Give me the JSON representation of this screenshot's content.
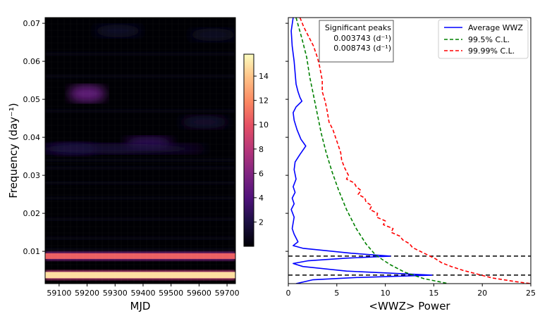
{
  "chart_data": [
    {
      "type": "heatmap",
      "xlabel": "MJD",
      "ylabel": "Frequency (day⁻¹)",
      "xlim": [
        59050,
        59730
      ],
      "ylim": [
        0.0015,
        0.0715
      ],
      "xticks": [
        "59100",
        "59200",
        "59300",
        "59400",
        "59500",
        "59600",
        "59700"
      ],
      "yticks": [
        "0.01",
        "0.02",
        "0.03",
        "0.04",
        "0.05",
        "0.06",
        "0.07"
      ],
      "colorbar": {
        "min": 0,
        "max": 15.8,
        "ticks": [
          "2",
          "4",
          "6",
          "8",
          "10",
          "12",
          "14"
        ],
        "colormap": "magma"
      },
      "features": [
        {
          "kind": "band",
          "freq": 0.003743,
          "value": 14.8
        },
        {
          "kind": "band",
          "freq": 0.008743,
          "value": 10.5
        },
        {
          "kind": "blob",
          "time": 59200,
          "freq": 0.0515,
          "value": 4.8
        },
        {
          "kind": "blob",
          "time": 59420,
          "freq": 0.0385,
          "value": 2.8
        },
        {
          "kind": "blob",
          "time": 59150,
          "freq": 0.037,
          "value": 1.8
        },
        {
          "kind": "blob",
          "time": 59620,
          "freq": 0.044,
          "value": 1.5
        },
        {
          "kind": "blob",
          "time": 59310,
          "freq": 0.068,
          "value": 1.2
        },
        {
          "kind": "blob",
          "time": 59650,
          "freq": 0.067,
          "value": 1.1
        }
      ]
    },
    {
      "type": "line",
      "xlabel": "<WWZ> Power",
      "xlim": [
        0,
        25
      ],
      "ylim": [
        0.0015,
        0.0715
      ],
      "xticks": [
        "0",
        "5",
        "10",
        "15",
        "20",
        "25"
      ],
      "significant_peaks": {
        "title": "Significant peaks",
        "values": [
          "0.003743 (d⁻¹)",
          "0.008743 (d⁻¹)"
        ],
        "freqs": [
          0.003743,
          0.008743
        ]
      },
      "legend": {
        "position": "top-right"
      },
      "series": [
        {
          "name": "Average WWZ",
          "color": "#0000ff",
          "style": "solid",
          "points": [
            [
              0.5,
              0.0715
            ],
            [
              0.3,
              0.068
            ],
            [
              0.4,
              0.064
            ],
            [
              0.6,
              0.06
            ],
            [
              0.7,
              0.057
            ],
            [
              0.8,
              0.054
            ],
            [
              1.0,
              0.052
            ],
            [
              1.2,
              0.0505
            ],
            [
              1.4,
              0.0495
            ],
            [
              0.8,
              0.048
            ],
            [
              0.5,
              0.0465
            ],
            [
              0.6,
              0.0445
            ],
            [
              0.9,
              0.042
            ],
            [
              1.3,
              0.0395
            ],
            [
              1.8,
              0.0377
            ],
            [
              1.2,
              0.0355
            ],
            [
              0.7,
              0.0335
            ],
            [
              0.6,
              0.0315
            ],
            [
              0.8,
              0.029
            ],
            [
              0.5,
              0.027
            ],
            [
              0.7,
              0.0255
            ],
            [
              0.4,
              0.024
            ],
            [
              0.6,
              0.0225
            ],
            [
              0.3,
              0.021
            ],
            [
              0.6,
              0.019
            ],
            [
              0.5,
              0.0175
            ],
            [
              0.4,
              0.016
            ],
            [
              0.6,
              0.0145
            ],
            [
              1.0,
              0.0125
            ],
            [
              0.5,
              0.0115
            ],
            [
              1.5,
              0.0108
            ],
            [
              6.5,
              0.0095
            ],
            [
              10.5,
              0.008743
            ],
            [
              6.0,
              0.0082
            ],
            [
              2.0,
              0.0075
            ],
            [
              0.5,
              0.0068
            ],
            [
              1.5,
              0.006
            ],
            [
              6.0,
              0.0048
            ],
            [
              14.8,
              0.003743
            ],
            [
              7.0,
              0.0031
            ],
            [
              2.5,
              0.0025
            ],
            [
              0.8,
              0.0015
            ]
          ]
        },
        {
          "name": "99.5% C.L.",
          "color": "#008000",
          "style": "dashed",
          "points": [
            [
              0.8,
              0.0715
            ],
            [
              1.4,
              0.066
            ],
            [
              1.9,
              0.061
            ],
            [
              2.2,
              0.056
            ],
            [
              2.6,
              0.051
            ],
            [
              3.0,
              0.046
            ],
            [
              3.4,
              0.041
            ],
            [
              3.9,
              0.036
            ],
            [
              4.5,
              0.031
            ],
            [
              5.2,
              0.026
            ],
            [
              6.0,
              0.021
            ],
            [
              7.0,
              0.016
            ],
            [
              8.0,
              0.012
            ],
            [
              9.0,
              0.009
            ],
            [
              10.5,
              0.0065
            ],
            [
              12.0,
              0.0045
            ],
            [
              14.0,
              0.0028
            ],
            [
              16.5,
              0.0015
            ]
          ]
        },
        {
          "name": "99.99% C.L.",
          "color": "#ff0000",
          "style": "dashed",
          "points": [
            [
              1.2,
              0.0715
            ],
            [
              1.6,
              0.069
            ],
            [
              2.2,
              0.066
            ],
            [
              2.6,
              0.064
            ],
            [
              3.0,
              0.061
            ],
            [
              3.2,
              0.059
            ],
            [
              3.5,
              0.055
            ],
            [
              3.5,
              0.052
            ],
            [
              3.8,
              0.0495
            ],
            [
              4.0,
              0.047
            ],
            [
              4.2,
              0.044
            ],
            [
              4.6,
              0.042
            ],
            [
              5.0,
              0.039
            ],
            [
              5.4,
              0.036
            ],
            [
              5.5,
              0.034
            ],
            [
              5.8,
              0.032
            ],
            [
              6.2,
              0.03
            ],
            [
              6.0,
              0.029
            ],
            [
              6.8,
              0.028
            ],
            [
              7.0,
              0.027
            ],
            [
              7.5,
              0.026
            ],
            [
              7.2,
              0.025
            ],
            [
              7.9,
              0.024
            ],
            [
              8.0,
              0.023
            ],
            [
              8.6,
              0.022
            ],
            [
              8.4,
              0.021
            ],
            [
              9.2,
              0.02
            ],
            [
              9.1,
              0.019
            ],
            [
              10.0,
              0.018
            ],
            [
              9.8,
              0.017
            ],
            [
              10.8,
              0.016
            ],
            [
              10.6,
              0.015
            ],
            [
              11.5,
              0.014
            ],
            [
              11.8,
              0.013
            ],
            [
              12.5,
              0.012
            ],
            [
              12.8,
              0.011
            ],
            [
              13.6,
              0.01
            ],
            [
              14.4,
              0.009
            ],
            [
              15.2,
              0.008
            ],
            [
              15.8,
              0.007
            ],
            [
              16.8,
              0.006
            ],
            [
              18.0,
              0.005
            ],
            [
              19.5,
              0.004
            ],
            [
              21.0,
              0.003
            ],
            [
              23.5,
              0.002
            ],
            [
              25.0,
              0.0015
            ]
          ]
        }
      ]
    }
  ]
}
